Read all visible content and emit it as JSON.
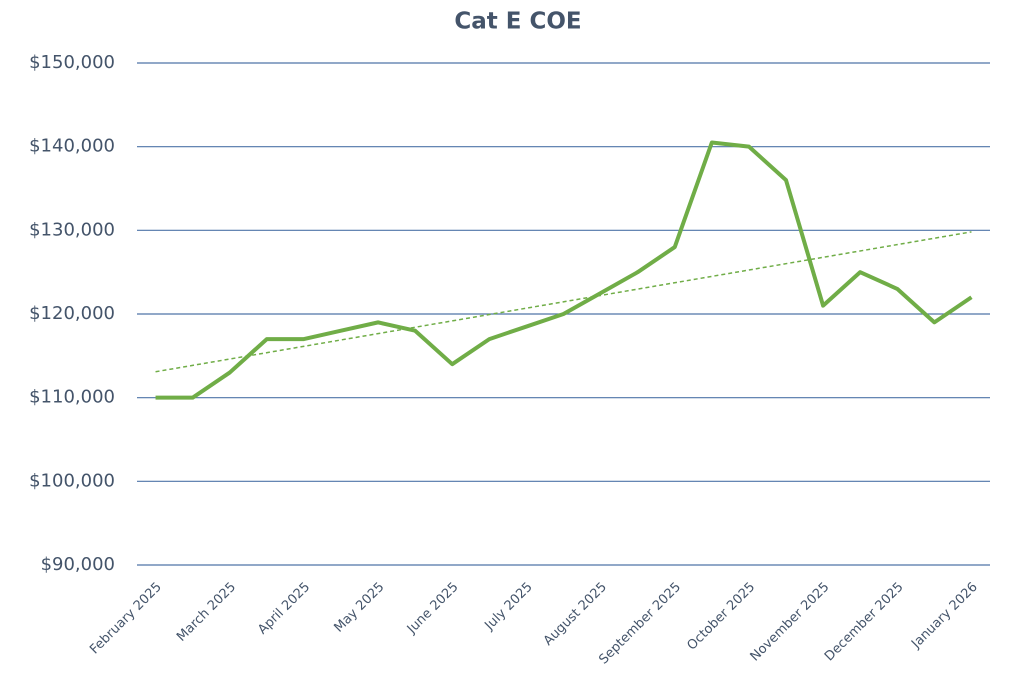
{
  "chart_data": {
    "type": "line",
    "title": "Cat E COE",
    "categories": [
      "February 2025",
      null,
      "March 2025",
      null,
      "April 2025",
      null,
      "May 2025",
      null,
      "June 2025",
      null,
      "July 2025",
      null,
      "August 2025",
      null,
      "September 2025",
      null,
      "October 2025",
      null,
      "November 2025",
      null,
      "December 2025",
      null,
      "January 2026"
    ],
    "series": [
      {
        "name": "Cat E COE",
        "color": "#70ad47",
        "values": [
          110000,
          110000,
          113000,
          117000,
          117000,
          118000,
          119000,
          118000,
          114000,
          117000,
          118500,
          120000,
          122500,
          125000,
          128000,
          140500,
          140000,
          136000,
          121000,
          125000,
          123000,
          119000,
          122000
        ]
      }
    ],
    "trendline": "linear",
    "ylim": [
      90000,
      150000
    ],
    "yticks": [
      {
        "value": 90000,
        "label": "$90,000"
      },
      {
        "value": 100000,
        "label": "$100,000"
      },
      {
        "value": 110000,
        "label": "$110,000"
      },
      {
        "value": 120000,
        "label": "$120,000"
      },
      {
        "value": 130000,
        "label": "$130,000"
      },
      {
        "value": 140000,
        "label": "$140,000"
      },
      {
        "value": 150000,
        "label": "$150,000"
      }
    ],
    "grid": true
  }
}
